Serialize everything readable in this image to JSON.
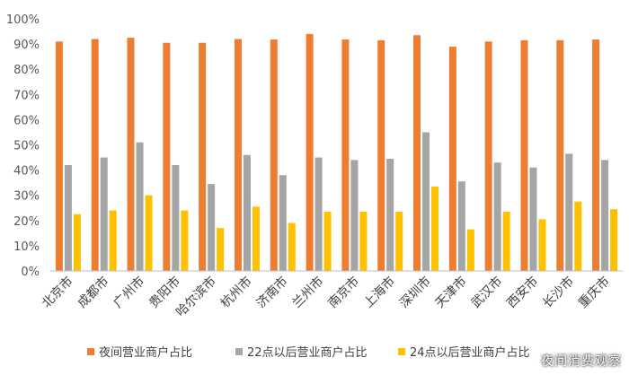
{
  "chart_data": {
    "type": "bar",
    "categories": [
      "北京市",
      "成都市",
      "广州市",
      "贵阳市",
      "哈尔滨市",
      "杭州市",
      "济南市",
      "兰州市",
      "南京市",
      "上海市",
      "深圳市",
      "天津市",
      "武汉市",
      "西安市",
      "长沙市",
      "重庆市"
    ],
    "series": [
      {
        "name": "夜间营业商户占比",
        "color": "#ED7D31",
        "values": [
          0.91,
          0.92,
          0.925,
          0.905,
          0.905,
          0.92,
          0.918,
          0.94,
          0.918,
          0.915,
          0.935,
          0.89,
          0.91,
          0.915,
          0.915,
          0.918
        ]
      },
      {
        "name": "22点以后营业商户占比",
        "color": "#A5A5A5",
        "values": [
          0.42,
          0.45,
          0.51,
          0.42,
          0.345,
          0.46,
          0.38,
          0.45,
          0.44,
          0.445,
          0.55,
          0.355,
          0.43,
          0.41,
          0.465,
          0.44
        ]
      },
      {
        "name": "24点以后营业商户占比",
        "color": "#FFC000",
        "values": [
          0.225,
          0.24,
          0.3,
          0.24,
          0.17,
          0.255,
          0.19,
          0.235,
          0.235,
          0.235,
          0.335,
          0.165,
          0.235,
          0.205,
          0.275,
          0.245
        ]
      }
    ],
    "ylim": [
      0,
      1
    ],
    "yticks": [
      "0%",
      "10%",
      "20%",
      "30%",
      "40%",
      "50%",
      "60%",
      "70%",
      "80%",
      "90%",
      "100%"
    ],
    "grid": false,
    "legend_position": "bottom"
  },
  "watermark": "夜间消费观察"
}
